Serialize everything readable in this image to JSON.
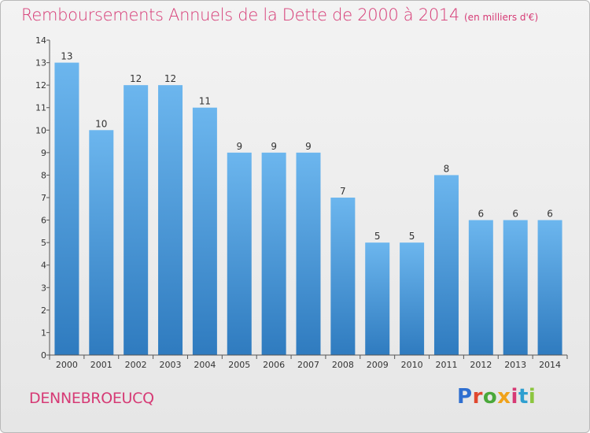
{
  "page": {
    "title": "Remboursements Annuels de la Dette de 2000 à 2014",
    "unit": "(en milliers d'€)",
    "commune": "DENNEBROEUCQ",
    "logo": {
      "text": "Proxiti",
      "letters": [
        {
          "ch": "P",
          "color": "#2f6fd0"
        },
        {
          "ch": "r",
          "color": "#e0482f"
        },
        {
          "ch": "o",
          "color": "#4aa83a"
        },
        {
          "ch": "x",
          "color": "#f0a21a"
        },
        {
          "ch": "i",
          "color": "#d63a75"
        },
        {
          "ch": "t",
          "color": "#2f9fd0"
        },
        {
          "ch": "i",
          "color": "#8cc63f"
        }
      ]
    }
  },
  "chart_data": {
    "type": "bar",
    "title": "Remboursements Annuels de la Dette de 2000 à 2014",
    "subtitle": "(en milliers d'€)",
    "categories": [
      "2000",
      "2001",
      "2002",
      "2003",
      "2004",
      "2005",
      "2006",
      "2007",
      "2008",
      "2009",
      "2010",
      "2011",
      "2012",
      "2013",
      "2014"
    ],
    "values": [
      13,
      10,
      12,
      12,
      11,
      9,
      9,
      9,
      7,
      5,
      5,
      8,
      6,
      6,
      6
    ],
    "ylim": [
      0,
      14
    ],
    "yticks": [
      0,
      1,
      2,
      3,
      4,
      5,
      6,
      7,
      8,
      9,
      10,
      11,
      12,
      13,
      14
    ],
    "grid": false,
    "bar_color_top": "#6cb6ee",
    "bar_color_bottom": "#2f7bbf"
  }
}
